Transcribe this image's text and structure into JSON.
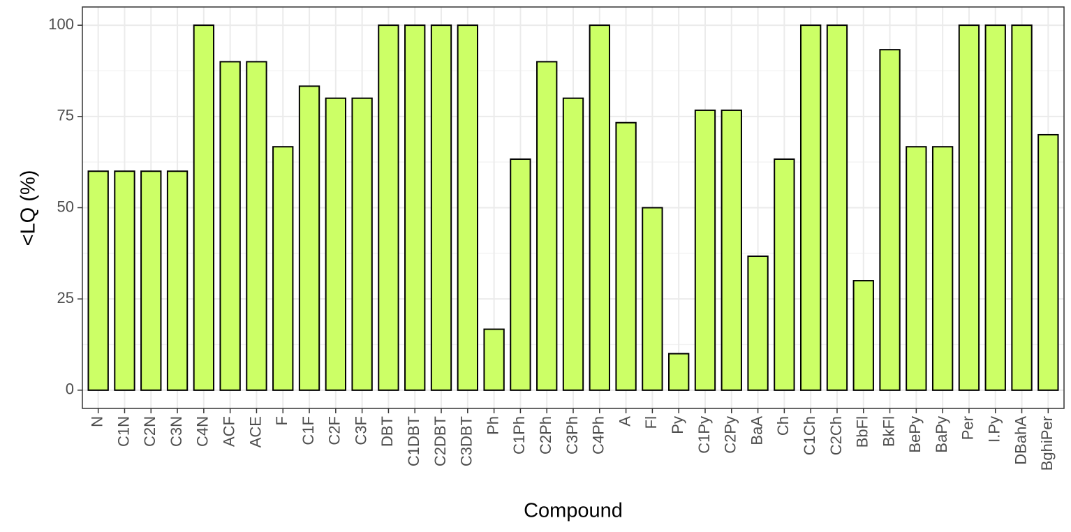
{
  "chart_data": {
    "type": "bar",
    "x_label": "Compound",
    "y_label": "<LQ (%)",
    "categories": [
      "N",
      "C1N",
      "C2N",
      "C3N",
      "C4N",
      "ACF",
      "ACE",
      "F",
      "C1F",
      "C2F",
      "C3F",
      "DBT",
      "C1DBT",
      "C2DBT",
      "C3DBT",
      "Ph",
      "C1Ph",
      "C2Ph",
      "C3Ph",
      "C4Ph",
      "A",
      "Fl",
      "Py",
      "C1Py",
      "C2Py",
      "BaA",
      "Ch",
      "C1Ch",
      "C2Ch",
      "BbFl",
      "BkFl",
      "BePy",
      "BaPy",
      "Per",
      "I.Py",
      "DBahA",
      "BghiPer"
    ],
    "values": [
      60,
      60,
      60,
      60,
      100,
      90,
      90,
      66.7,
      83.3,
      80,
      80,
      100,
      100,
      100,
      100,
      16.7,
      63.3,
      90,
      80,
      100,
      73.3,
      50,
      10,
      76.7,
      76.7,
      36.7,
      63.3,
      100,
      100,
      30,
      93.3,
      66.7,
      66.7,
      100,
      100,
      100,
      70
    ],
    "color": "#ccff66",
    "ylim": [
      -5,
      105
    ],
    "yticks": [
      0,
      25,
      50,
      75,
      100
    ],
    "grid": true
  }
}
